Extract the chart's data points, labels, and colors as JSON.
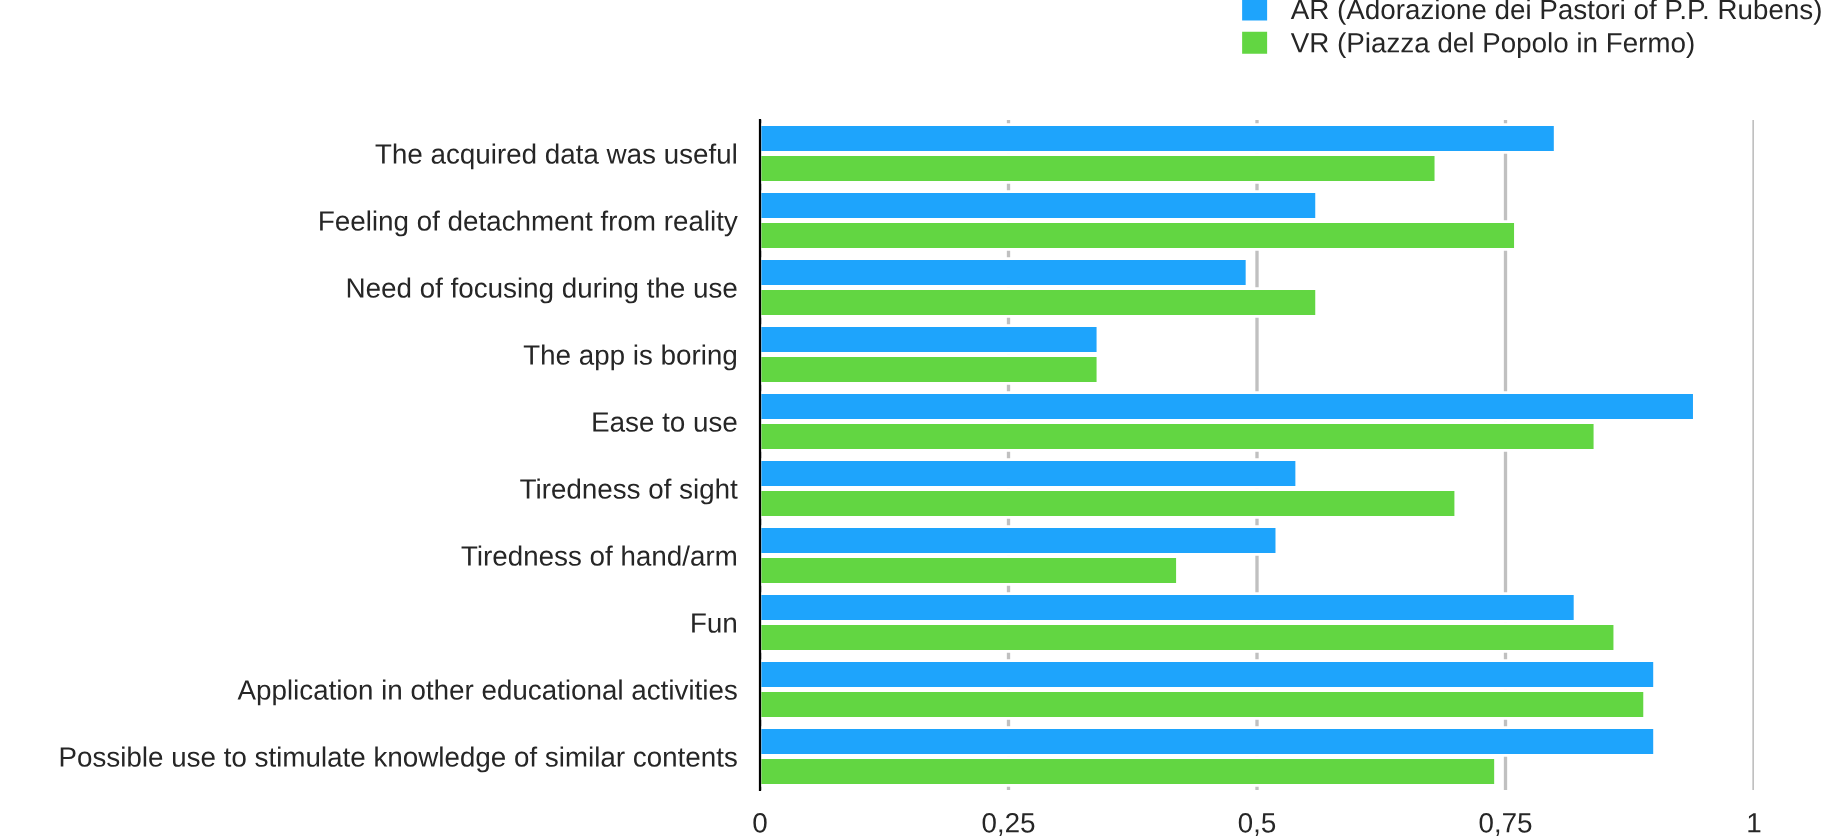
{
  "chart_data": {
    "type": "bar",
    "orientation": "horizontal",
    "categories": [
      "The acquired data was useful",
      "Feeling of detachment from reality",
      "Need of focusing during the use",
      "The app is boring",
      "Ease to use",
      "Tiredness of sight",
      "Tiredness of hand/arm",
      "Fun",
      "Application in other educational activities",
      "Possible use to stimulate knowledge of similar contents"
    ],
    "series": [
      {
        "name": "AR (Adorazione dei Pastori of P.P. Rubens)",
        "color": "#1ea4fc",
        "values": [
          0.8,
          0.56,
          0.49,
          0.34,
          0.94,
          0.54,
          0.52,
          0.82,
          0.9,
          0.9
        ]
      },
      {
        "name": "VR (Piazza del Popolo in Fermo)",
        "color": "#62d642",
        "values": [
          0.68,
          0.76,
          0.56,
          0.34,
          0.84,
          0.7,
          0.42,
          0.86,
          0.89,
          0.74
        ]
      }
    ],
    "xlim": [
      0,
      1
    ],
    "xticks": [
      0,
      {
        "value": 0.25,
        "label": "0,25"
      },
      {
        "value": 0.5,
        "label": "0,5"
      },
      {
        "value": 0.75,
        "label": "0,75"
      },
      1
    ],
    "grid": "x",
    "legend": "top right"
  }
}
